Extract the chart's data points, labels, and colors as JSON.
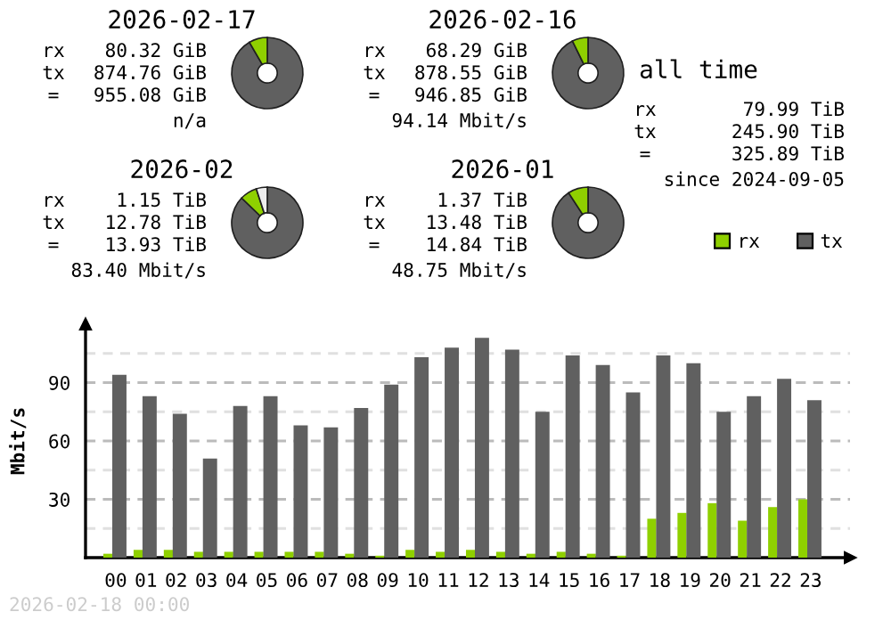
{
  "chart_data": [
    {
      "type": "donut",
      "title": "2026-02-17",
      "categories": [
        null,
        null
      ],
      "values": [
        91.6,
        8.4
      ],
      "colors": [
        "#606060",
        "#8fd000"
      ],
      "annotations": [
        "rx",
        "80.32 GiB",
        "tx",
        "874.76 GiB",
        "=",
        "955.08 GiB",
        "n/a"
      ]
    },
    {
      "type": "donut",
      "title": "2026-02-16",
      "categories": [
        null,
        null
      ],
      "values": [
        92.8,
        7.2
      ],
      "colors": [
        "#606060",
        "#8fd000"
      ],
      "annotations": [
        "rx",
        "68.29 GiB",
        "tx",
        "878.55 GiB",
        "=",
        "946.85 GiB",
        "94.14 Mbit/s"
      ]
    },
    {
      "type": "other",
      "title": "all time",
      "annotations": [
        "rx",
        "79.99 TiB",
        "tx",
        "245.90 TiB",
        "=",
        "325.89 TiB",
        "since 2024-09-05"
      ]
    },
    {
      "type": "donut",
      "title": "2026-02",
      "categories": [
        null,
        null,
        null
      ],
      "values": [
        87.2,
        7.8,
        5.0
      ],
      "colors": [
        "#606060",
        "#8fd000",
        "#eeeeee"
      ],
      "annotations": [
        "rx",
        "1.15 TiB",
        "tx",
        "12.78 TiB",
        "=",
        "13.93 TiB",
        "83.40 Mbit/s"
      ]
    },
    {
      "type": "donut",
      "title": "2026-01",
      "categories": [
        null,
        null
      ],
      "values": [
        90.8,
        9.2
      ],
      "colors": [
        "#606060",
        "#8fd000"
      ],
      "annotations": [
        "rx",
        "1.37 TiB",
        "tx",
        "13.48 TiB",
        "=",
        "14.84 TiB",
        "48.75 Mbit/s"
      ]
    },
    {
      "type": "bar",
      "ylabel": "Mbit/s",
      "categories": [
        "00",
        "01",
        "02",
        "03",
        "04",
        "05",
        "06",
        "07",
        "08",
        "09",
        "10",
        "11",
        "12",
        "13",
        "14",
        "15",
        "16",
        "17",
        "18",
        "19",
        "20",
        "21",
        "22",
        "23"
      ],
      "series": [
        {
          "name": "rx",
          "color": "#8fd000",
          "values": [
            2,
            4,
            4,
            3,
            3,
            3,
            3,
            3,
            2,
            1,
            4,
            3,
            4,
            3,
            2,
            3,
            2,
            1,
            20,
            23,
            28,
            19,
            26,
            30
          ]
        },
        {
          "name": "tx",
          "color": "#606060",
          "values": [
            94,
            83,
            74,
            51,
            78,
            83,
            68,
            67,
            77,
            89,
            103,
            108,
            113,
            107,
            75,
            104,
            99,
            85,
            104,
            100,
            75,
            83,
            92,
            81
          ]
        }
      ],
      "ylim": [
        0,
        120
      ],
      "yticks": [
        {
          "value": 15,
          "label": null
        },
        30,
        {
          "value": 45,
          "label": null
        },
        60,
        {
          "value": 75,
          "label": null
        },
        90,
        {
          "value": 105,
          "label": null
        }
      ],
      "grid": "y",
      "legend": "top right",
      "annotations": [
        "2026-02-18 00:00"
      ]
    }
  ]
}
